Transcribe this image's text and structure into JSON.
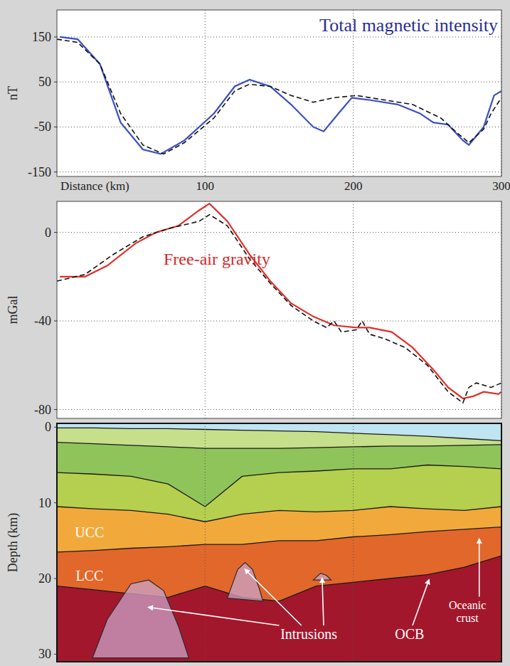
{
  "chart_data": [
    {
      "type": "line",
      "title": "Total magnetic intensity",
      "x_label": "Distance (km)",
      "y_label": "nT",
      "xlim": [
        0,
        300
      ],
      "ylim": [
        -160,
        210
      ],
      "xticks": [
        100,
        200,
        300
      ],
      "yticks": [
        -150,
        -50,
        50,
        150
      ],
      "grid": true,
      "color": "#2b2f8f",
      "series": [
        {
          "color": "#3a4fc1",
          "line_style": "solid",
          "x": [
            2,
            14,
            29,
            43,
            58,
            70,
            86,
            106,
            120,
            130,
            144,
            158,
            173,
            180,
            190,
            199,
            211,
            230,
            245,
            254,
            264,
            274,
            278,
            288,
            295,
            300
          ],
          "values": [
            150,
            145,
            90,
            -40,
            -100,
            -110,
            -80,
            -20,
            40,
            55,
            40,
            0,
            -50,
            -60,
            -20,
            15,
            10,
            0,
            -20,
            -40,
            -45,
            -80,
            -90,
            -50,
            20,
            30
          ]
        },
        {
          "color": "#111111",
          "line_style": "dashed",
          "x": [
            0,
            14,
            29,
            43,
            58,
            72,
            86,
            106,
            120,
            130,
            144,
            158,
            173,
            187,
            202,
            221,
            240,
            259,
            269,
            278,
            288,
            293,
            300
          ],
          "values": [
            145,
            138,
            90,
            -20,
            -90,
            -110,
            -85,
            -30,
            30,
            45,
            40,
            20,
            5,
            15,
            20,
            10,
            0,
            -30,
            -60,
            -85,
            -55,
            -20,
            15
          ]
        }
      ]
    },
    {
      "type": "line",
      "title": "Free-air gravity",
      "y_label": "mGal",
      "xlim": [
        0,
        300
      ],
      "ylim": [
        -84,
        14
      ],
      "xticks": [
        100,
        200,
        300
      ],
      "yticks": [
        -80,
        -40,
        0
      ],
      "grid": true,
      "tick_labels": "y",
      "color": "#d42a2a",
      "series": [
        {
          "color": "#e0302a",
          "line_style": "solid",
          "x": [
            2,
            19,
            34,
            53,
            67,
            82,
            96,
            103,
            115,
            130,
            144,
            158,
            173,
            187,
            202,
            211,
            226,
            240,
            254,
            264,
            274,
            281,
            288,
            298,
            300
          ],
          "values": [
            -20,
            -20,
            -15,
            -5,
            0,
            3,
            10,
            13,
            5,
            -10,
            -22,
            -32,
            -38,
            -42,
            -43,
            -43,
            -45,
            -52,
            -62,
            -70,
            -75,
            -74,
            -72,
            -73,
            -72
          ]
        },
        {
          "color": "#111111",
          "line_style": "dashed",
          "x": [
            0,
            19,
            38,
            58,
            77,
            96,
            103,
            115,
            130,
            144,
            158,
            173,
            182,
            187,
            192,
            202,
            206,
            211,
            221,
            235,
            250,
            264,
            274,
            278,
            283,
            293,
            300
          ],
          "values": [
            -22,
            -19,
            -10,
            -2,
            2,
            5,
            8,
            3,
            -12,
            -23,
            -33,
            -40,
            -43,
            -40,
            -45,
            -44,
            -40,
            -46,
            -48,
            -52,
            -60,
            -72,
            -77,
            -70,
            -68,
            -70,
            -68
          ]
        }
      ]
    },
    {
      "type": "cross_section",
      "y_label": "Depth (km)",
      "xlim": [
        0,
        300
      ],
      "ylim": [
        -0.5,
        31
      ],
      "xticks": [
        100,
        200,
        300
      ],
      "yticks": [
        0,
        10,
        20,
        30
      ],
      "grid": true,
      "tick_labels": "y",
      "color": "#bfe4f2",
      "x": [
        0,
        25,
        50,
        75,
        100,
        125,
        150,
        175,
        200,
        225,
        250,
        275,
        300
      ],
      "boundaries": [
        {
          "color": "#c6df8a",
          "values": [
            0.1,
            0.1,
            0.2,
            0.2,
            0.3,
            0.4,
            0.5,
            0.6,
            0.8,
            1.0,
            1.2,
            1.5,
            1.8
          ]
        },
        {
          "color": "#8fc45a",
          "values": [
            2.0,
            2.2,
            2.4,
            2.6,
            2.8,
            2.8,
            2.8,
            2.7,
            2.6,
            2.5,
            2.5,
            2.4,
            2.3
          ]
        },
        {
          "color": "#b5cf4e",
          "values": [
            6.0,
            6.2,
            6.5,
            7.5,
            10.5,
            6.5,
            6.0,
            5.8,
            5.5,
            5.5,
            5.0,
            5.2,
            5.5
          ]
        },
        {
          "color": "#f2a93b",
          "values": [
            10.5,
            10.8,
            11.0,
            11.5,
            12.5,
            11.5,
            11.0,
            11.2,
            11.0,
            10.5,
            10.8,
            11.0,
            10.5
          ]
        },
        {
          "color": "#e2672a",
          "values": [
            16.5,
            16.3,
            16.0,
            15.8,
            15.5,
            15.5,
            15.0,
            15.0,
            14.5,
            14.2,
            13.8,
            13.5,
            13.2
          ]
        },
        {
          "color": "#a3172c",
          "values": [
            21.0,
            21.5,
            22.0,
            22.5,
            21.0,
            22.5,
            23.0,
            21.0,
            20.5,
            20.0,
            19.5,
            18.5,
            17.0
          ]
        }
      ],
      "intrusions": {
        "color": "#c9a3c8",
        "shapes": [
          {
            "x": [
              24,
              34,
              50,
              62,
              72,
              82,
              89
            ],
            "y": [
              30.5,
              25.4,
              20.7,
              20.2,
              21.6,
              26.3,
              30.5
            ]
          },
          {
            "x": [
              115,
              122,
              127,
              132,
              137,
              139
            ],
            "y": [
              22.6,
              18.8,
              17.9,
              18.8,
              21.6,
              23.0
            ]
          },
          {
            "x": [
              173,
              178,
              182,
              185
            ],
            "y": [
              20.2,
              19.3,
              19.6,
              20.2
            ]
          }
        ]
      },
      "annotations": [
        "UCC",
        "LCC",
        "Intrusions",
        "OCB",
        "Oceanic crust"
      ]
    }
  ]
}
